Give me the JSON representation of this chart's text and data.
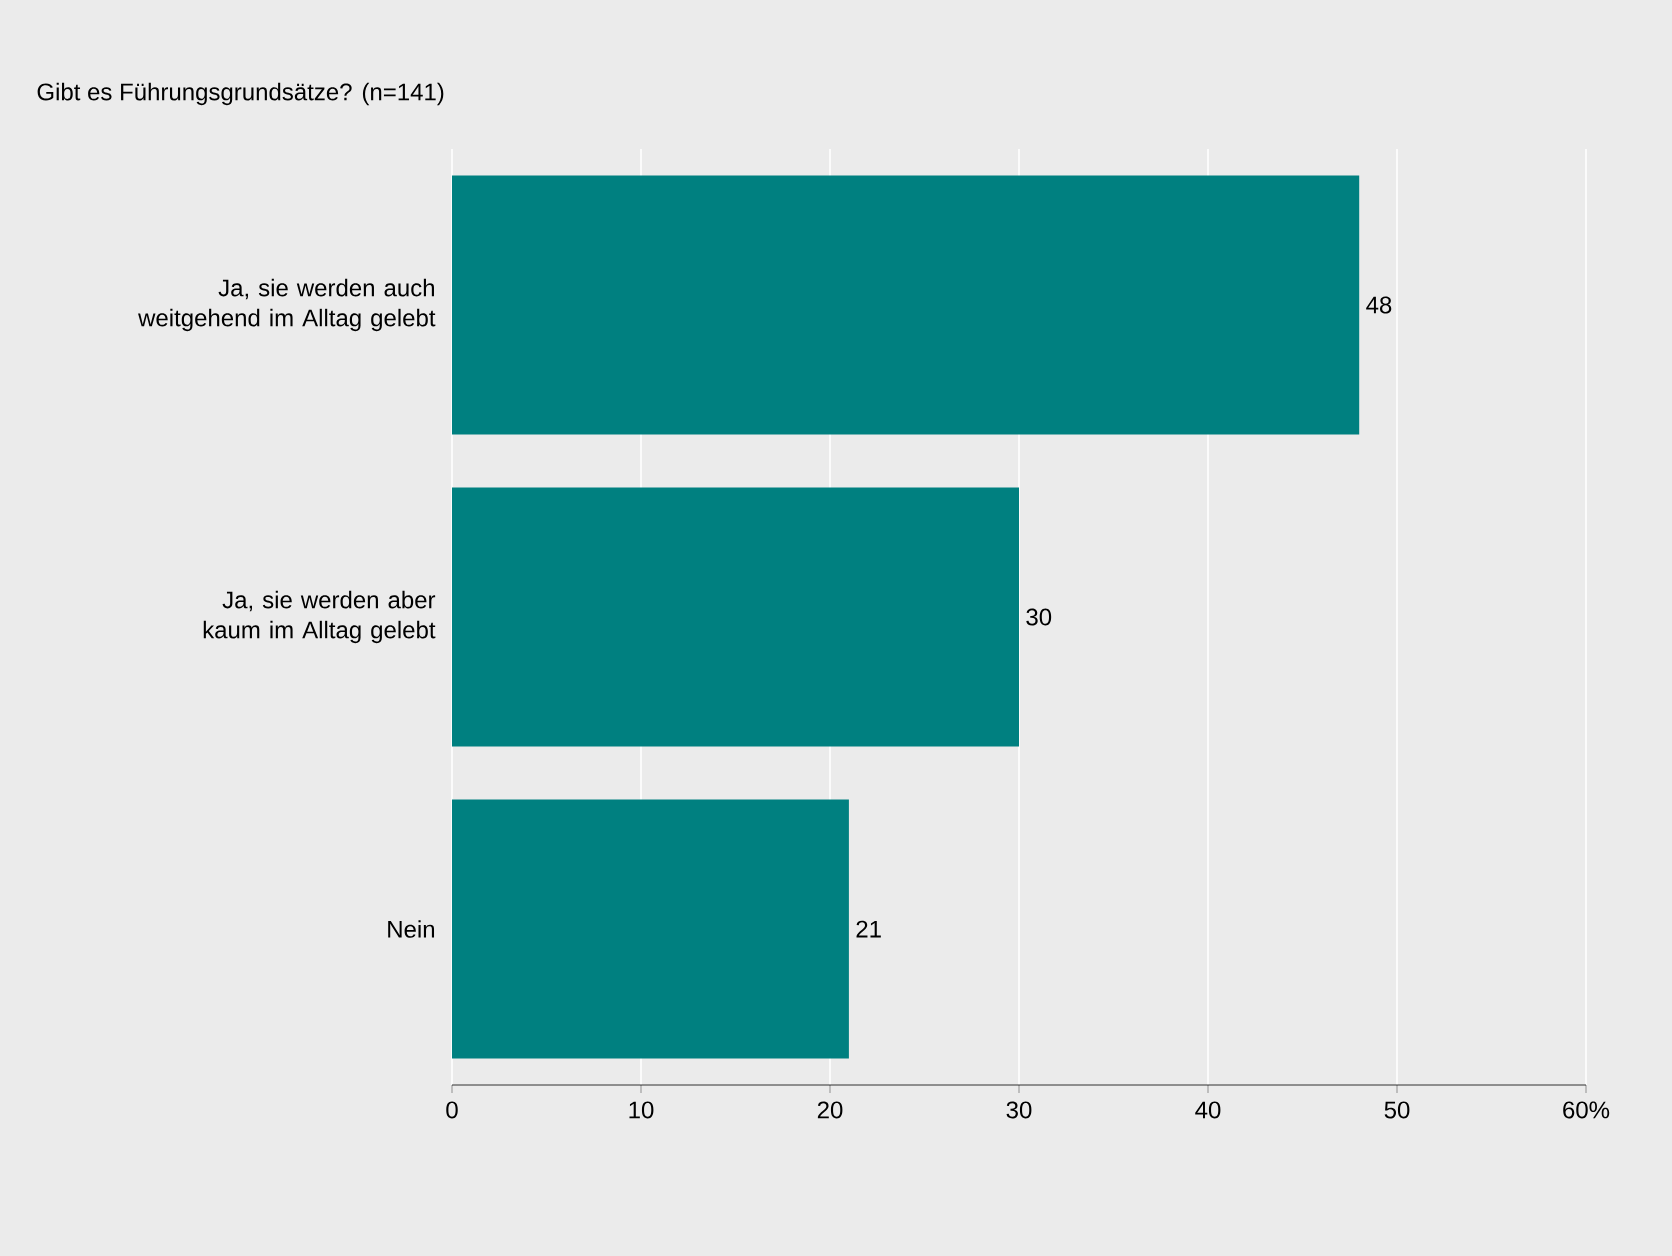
{
  "chart_data": {
    "type": "bar",
    "orientation": "horizontal",
    "title": "Gibt es Führungsgrundsätze? (n=141)",
    "categories": [
      "Ja, sie werden auch weitgehend im Alltag gelebt",
      "Ja, sie werden aber kaum im Alltag gelebt",
      "Nein"
    ],
    "values": [
      48,
      30,
      21
    ],
    "color": "#008080",
    "xlim": [
      0,
      60
    ],
    "xticks": [
      0,
      10,
      20,
      30,
      40,
      50,
      {
        "value": 60,
        "label": "60%"
      }
    ],
    "grid": "x",
    "data_labels": true
  }
}
